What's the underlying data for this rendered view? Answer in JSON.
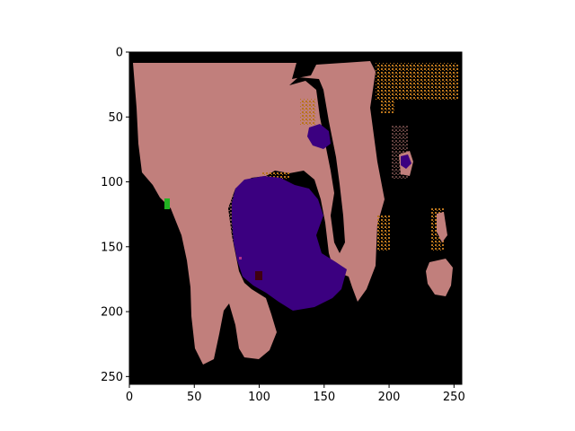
{
  "chart_data": {
    "type": "heatmap",
    "title": "",
    "xlabel": "",
    "ylabel": "",
    "xlim": [
      0,
      256
    ],
    "ylim": [
      256,
      0
    ],
    "x_ticks": [
      0,
      50,
      100,
      150,
      200,
      250
    ],
    "y_ticks": [
      0,
      50,
      100,
      150,
      200,
      250
    ],
    "grid": false,
    "colors": {
      "background": "#000000",
      "main_region": "#c17f7c",
      "blob_region": "#3b0080",
      "speckle_region": "#b8741c",
      "small_mark_green": "#22b222",
      "small_mark_dark": "#400010"
    }
  }
}
